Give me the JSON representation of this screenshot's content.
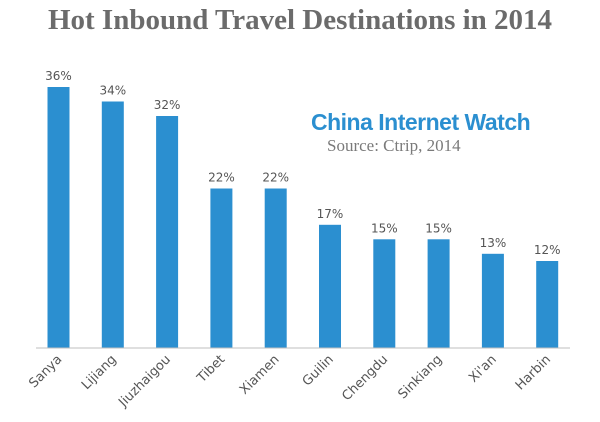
{
  "chart_data": {
    "type": "bar",
    "title": "Hot Inbound Travel Destinations in 2014",
    "subtitle": "",
    "xlabel": "",
    "ylabel": "",
    "categories": [
      "Sanya",
      "Lijiang",
      "Jiuzhaigou",
      "Tibet",
      "Xiamen",
      "Guilin",
      "Chengdu",
      "Sinkiang",
      "Xi'an",
      "Harbin"
    ],
    "values": [
      36,
      34,
      32,
      22,
      22,
      17,
      15,
      15,
      13,
      12
    ],
    "value_labels": [
      "36%",
      "34%",
      "32%",
      "22%",
      "22%",
      "17%",
      "15%",
      "15%",
      "13%",
      "12%"
    ],
    "ylim": [
      0,
      36
    ],
    "grid": false,
    "legend": "none",
    "bar_color": "#2b8fd0"
  },
  "watermark": "China Internet Watch",
  "source_note": "Source: Ctrip, 2014",
  "colors": {
    "bar": "#2b8fd0",
    "title": "#6b6b6b",
    "watermark": "#2b8fd0",
    "label": "#555555",
    "axis": "#bfbfbf"
  }
}
